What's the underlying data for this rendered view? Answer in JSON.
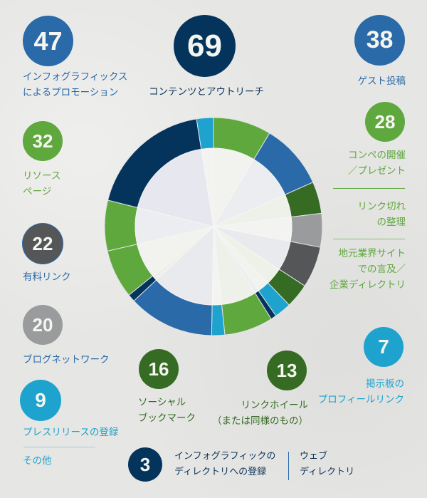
{
  "colors": {
    "navy": "#04345c",
    "blue": "#2a6aa8",
    "light_blue": "#1da3cd",
    "green": "#5fa83d",
    "dark_green": "#356b23",
    "gray": "#9a9b9d",
    "dark_gray": "#555657",
    "text_blue": "#2a6aa8",
    "text_green": "#5fa83d",
    "text_navy": "#0d3459",
    "text_light_blue": "#1da3cd"
  },
  "items": {
    "infographics": {
      "value": "47",
      "label": "インフォグラフィックス\nによるプロモーション"
    },
    "content": {
      "value": "69",
      "label": "コンテンツとアウトリーチ"
    },
    "guest": {
      "value": "38",
      "label": "ゲスト投稿"
    },
    "resource": {
      "value": "32",
      "label": "リソース\nページ"
    },
    "contest": {
      "value": "28",
      "label": "コンペの開催\n／プレゼント"
    },
    "broken": {
      "label": "リンク切れ\nの整理"
    },
    "local": {
      "label": "地元業界サイト\nでの言及／\n企業ディレクトリ"
    },
    "paid": {
      "value": "22",
      "label": "有料リンク"
    },
    "blognet": {
      "value": "20",
      "label": "ブログネットワーク"
    },
    "social": {
      "value": "16",
      "label": "ソーシャル\nブックマーク"
    },
    "wheel": {
      "value": "13",
      "label": "リンクホイール\n（または同様のもの）"
    },
    "forum": {
      "value": "7",
      "label": "掲示板の\nプロフィールリンク"
    },
    "press": {
      "value": "9",
      "label": "プレスリリースの登録"
    },
    "other": {
      "label": "その他"
    },
    "directory": {
      "value": "3",
      "label": "インフォグラフィックの\nディレクトリへの登録"
    },
    "webdir": {
      "label": "ウェブ\nディレクトリ"
    }
  },
  "chart_data": {
    "type": "pie",
    "subtype": "donut",
    "title": "",
    "categories": [
      "コンテンツとアウトリーチ",
      "インフォグラフィックス によるプロモーション",
      "ゲスト投稿",
      "リソース ページ",
      "コンペの開催／プレゼント",
      "リンク切れの整理",
      "地元業界サイトでの言及／企業ディレクトリ",
      "有料リンク",
      "ブログネットワーク",
      "ソーシャル ブックマーク",
      "リンクホイール（または同様のもの）",
      "プレスリリースの登録",
      "掲示板の プロフィールリンク",
      "その他",
      "インフォグラフィックの ディレクトリへの登録",
      "ウェブ ディレクトリ"
    ],
    "values": [
      69,
      47,
      38,
      32,
      28,
      null,
      null,
      22,
      20,
      16,
      13,
      9,
      7,
      null,
      3,
      null
    ],
    "segments_clockwise_from_top": [
      {
        "color": "#5fa83d",
        "start": 0,
        "end": 31
      },
      {
        "color": "#2a6aa8",
        "start": 31,
        "end": 66
      },
      {
        "color": "#356b23",
        "start": 66,
        "end": 83
      },
      {
        "color": "#9a9b9d",
        "start": 83,
        "end": 101
      },
      {
        "color": "#555657",
        "start": 101,
        "end": 123
      },
      {
        "color": "#356b23",
        "start": 123,
        "end": 136
      },
      {
        "color": "#1da3cd",
        "start": 136,
        "end": 145
      },
      {
        "color": "#04345c",
        "start": 145,
        "end": 148
      },
      {
        "color": "#5fa83d",
        "start": 148,
        "end": 174
      },
      {
        "color": "#1da3cd",
        "start": 174,
        "end": 181
      },
      {
        "color": "#2a6aa8",
        "start": 181,
        "end": 227
      },
      {
        "color": "#04345c",
        "start": 227,
        "end": 231
      },
      {
        "color": "#5fa83d",
        "start": 231,
        "end": 257
      },
      {
        "color": "#5fa83d",
        "start": 257,
        "end": 284
      },
      {
        "color": "#04345c",
        "start": 284,
        "end": 351
      },
      {
        "color": "#1da3cd",
        "start": 351,
        "end": 360
      }
    ],
    "legend": "none",
    "grid": false
  }
}
